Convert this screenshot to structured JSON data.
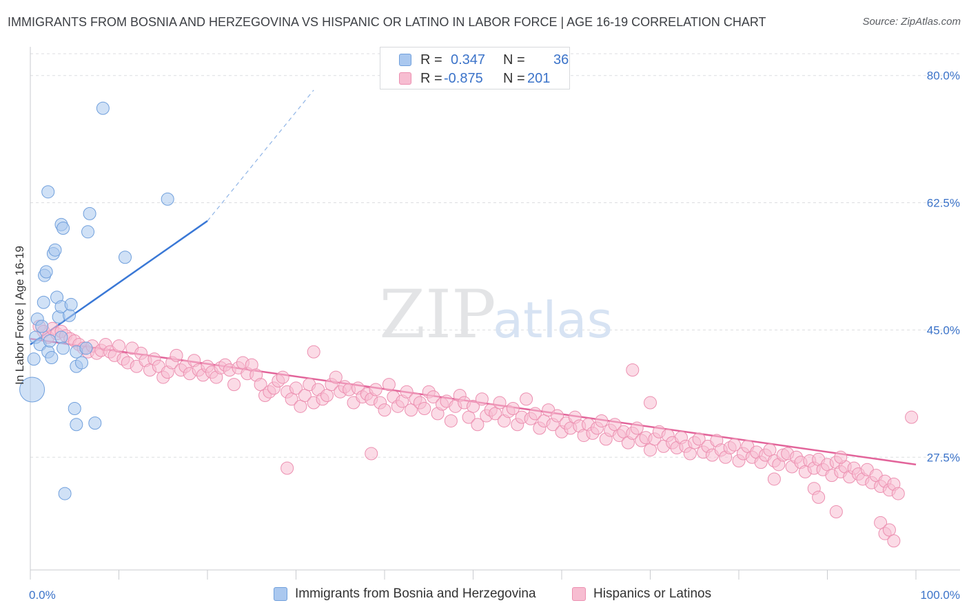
{
  "title": "IMMIGRANTS FROM BOSNIA AND HERZEGOVINA VS HISPANIC OR LATINO IN LABOR FORCE | AGE 16-19 CORRELATION CHART",
  "source": "Source: ZipAtlas.com",
  "watermark": {
    "zip": "ZIP",
    "atlas": "atlas"
  },
  "legend": {
    "rows": [
      {
        "r_label": "R =",
        "r_value": "0.347",
        "n_label": "N =",
        "n_value": "36",
        "color": "#aac8ef",
        "stroke": "#6f9fdc"
      },
      {
        "r_label": "R =",
        "r_value": "-0.875",
        "n_label": "N =",
        "n_value": "201",
        "color": "#f7bdd1",
        "stroke": "#ec8fb0"
      }
    ]
  },
  "bottom_legend": [
    {
      "label": "Immigrants from Bosnia and Herzegovina",
      "color": "#aac8ef",
      "stroke": "#6f9fdc"
    },
    {
      "label": "Hispanics or Latinos",
      "color": "#f7bdd1",
      "stroke": "#ec8fb0"
    }
  ],
  "chart_data": {
    "type": "scatter",
    "title": "IMMIGRANTS FROM BOSNIA AND HERZEGOVINA VS HISPANIC OR LATINO IN LABOR FORCE | AGE 16-19 CORRELATION CHART",
    "xlabel": "",
    "ylabel": "In Labor Force | Age 16-19",
    "xlim": [
      0,
      100
    ],
    "ylim": [
      12,
      83
    ],
    "x_tick_labels": [
      {
        "value": 0,
        "label": "0.0%"
      },
      {
        "value": 100,
        "label": "100.0%"
      }
    ],
    "y_tick_labels": [
      {
        "value": 80,
        "label": "80.0%"
      },
      {
        "value": 62.5,
        "label": "62.5%"
      },
      {
        "value": 45,
        "label": "45.0%"
      },
      {
        "value": 27.5,
        "label": "27.5%"
      }
    ],
    "grid": true,
    "legend_position": "top-center",
    "series": [
      {
        "name": "Immigrants from Bosnia and Herzegovina",
        "color": "#aac8ef",
        "stroke": "#6f9fdc",
        "trend": {
          "x": [
            0,
            20
          ],
          "y": [
            43.0,
            60.0
          ],
          "dashed_to": [
            32,
            78
          ]
        },
        "points": [
          {
            "x": 0.2,
            "y": 36.8,
            "big": true
          },
          {
            "x": 0.4,
            "y": 41.0
          },
          {
            "x": 0.6,
            "y": 44.0
          },
          {
            "x": 0.8,
            "y": 46.5
          },
          {
            "x": 1.1,
            "y": 43.0
          },
          {
            "x": 1.3,
            "y": 45.5
          },
          {
            "x": 1.5,
            "y": 48.8
          },
          {
            "x": 1.6,
            "y": 52.5
          },
          {
            "x": 1.8,
            "y": 53.0
          },
          {
            "x": 2.0,
            "y": 42.0
          },
          {
            "x": 2.2,
            "y": 43.5
          },
          {
            "x": 2.4,
            "y": 41.2
          },
          {
            "x": 2.6,
            "y": 55.5
          },
          {
            "x": 2.8,
            "y": 56.0
          },
          {
            "x": 3.0,
            "y": 49.5
          },
          {
            "x": 3.2,
            "y": 46.8
          },
          {
            "x": 3.5,
            "y": 48.2
          },
          {
            "x": 3.5,
            "y": 44.0
          },
          {
            "x": 3.7,
            "y": 42.5
          },
          {
            "x": 2.0,
            "y": 64.0
          },
          {
            "x": 3.5,
            "y": 59.5
          },
          {
            "x": 3.7,
            "y": 59.0
          },
          {
            "x": 4.4,
            "y": 47.0
          },
          {
            "x": 4.6,
            "y": 48.5
          },
          {
            "x": 5.2,
            "y": 42.0
          },
          {
            "x": 5.2,
            "y": 40.0
          },
          {
            "x": 5.0,
            "y": 34.2
          },
          {
            "x": 5.2,
            "y": 32.0
          },
          {
            "x": 5.8,
            "y": 40.5
          },
          {
            "x": 6.3,
            "y": 42.5
          },
          {
            "x": 6.5,
            "y": 58.5
          },
          {
            "x": 6.7,
            "y": 61.0
          },
          {
            "x": 7.3,
            "y": 32.2
          },
          {
            "x": 8.2,
            "y": 75.5
          },
          {
            "x": 10.7,
            "y": 55.0
          },
          {
            "x": 15.5,
            "y": 63.0
          },
          {
            "x": 3.9,
            "y": 22.5
          }
        ]
      },
      {
        "name": "Hispanics or Latinos",
        "color": "#f7bdd1",
        "stroke": "#ec8fb0",
        "trend": {
          "x": [
            0,
            100
          ],
          "y": [
            43.8,
            26.5
          ]
        },
        "points": [
          {
            "x": 1.0,
            "y": 45.5
          },
          {
            "x": 1.5,
            "y": 44.8
          },
          {
            "x": 2.0,
            "y": 44.0
          },
          {
            "x": 2.5,
            "y": 45.2
          },
          {
            "x": 3.0,
            "y": 44.5
          },
          {
            "x": 3.5,
            "y": 44.8
          },
          {
            "x": 4.0,
            "y": 44.2
          },
          {
            "x": 4.5,
            "y": 43.8
          },
          {
            "x": 5.0,
            "y": 43.5
          },
          {
            "x": 5.5,
            "y": 43.0
          },
          {
            "x": 6.0,
            "y": 42.5
          },
          {
            "x": 6.5,
            "y": 42.0
          },
          {
            "x": 7.0,
            "y": 42.8
          },
          {
            "x": 7.5,
            "y": 41.8
          },
          {
            "x": 8.0,
            "y": 42.2
          },
          {
            "x": 8.5,
            "y": 43.0
          },
          {
            "x": 9.0,
            "y": 42.0
          },
          {
            "x": 9.5,
            "y": 41.5
          },
          {
            "x": 10.0,
            "y": 42.8
          },
          {
            "x": 10.5,
            "y": 41.0
          },
          {
            "x": 11.0,
            "y": 40.5
          },
          {
            "x": 11.5,
            "y": 42.5
          },
          {
            "x": 12.0,
            "y": 40.0
          },
          {
            "x": 12.5,
            "y": 41.8
          },
          {
            "x": 13.0,
            "y": 40.8
          },
          {
            "x": 13.5,
            "y": 39.5
          },
          {
            "x": 14.0,
            "y": 41.0
          },
          {
            "x": 14.5,
            "y": 40.0
          },
          {
            "x": 15.0,
            "y": 38.5
          },
          {
            "x": 15.5,
            "y": 39.2
          },
          {
            "x": 16.0,
            "y": 40.5
          },
          {
            "x": 16.5,
            "y": 41.5
          },
          {
            "x": 17.0,
            "y": 39.5
          },
          {
            "x": 17.5,
            "y": 40.0
          },
          {
            "x": 18.0,
            "y": 39.0
          },
          {
            "x": 18.5,
            "y": 40.8
          },
          {
            "x": 19.0,
            "y": 39.5
          },
          {
            "x": 19.5,
            "y": 38.8
          },
          {
            "x": 20.0,
            "y": 40.0
          },
          {
            "x": 20.5,
            "y": 39.2
          },
          {
            "x": 21.0,
            "y": 38.5
          },
          {
            "x": 21.5,
            "y": 39.8
          },
          {
            "x": 22.0,
            "y": 40.2
          },
          {
            "x": 22.5,
            "y": 39.5
          },
          {
            "x": 23.0,
            "y": 37.5
          },
          {
            "x": 23.5,
            "y": 39.8
          },
          {
            "x": 24.0,
            "y": 40.5
          },
          {
            "x": 24.5,
            "y": 39.0
          },
          {
            "x": 25.0,
            "y": 40.2
          },
          {
            "x": 25.5,
            "y": 38.8
          },
          {
            "x": 26.0,
            "y": 37.5
          },
          {
            "x": 26.5,
            "y": 36.0
          },
          {
            "x": 27.0,
            "y": 36.5
          },
          {
            "x": 27.5,
            "y": 37.0
          },
          {
            "x": 28.0,
            "y": 38.0
          },
          {
            "x": 28.5,
            "y": 38.5
          },
          {
            "x": 29.0,
            "y": 36.5
          },
          {
            "x": 29.5,
            "y": 35.5
          },
          {
            "x": 30.0,
            "y": 37.0
          },
          {
            "x": 30.5,
            "y": 34.5
          },
          {
            "x": 31.0,
            "y": 36.0
          },
          {
            "x": 31.5,
            "y": 37.5
          },
          {
            "x": 32.0,
            "y": 35.0
          },
          {
            "x": 32.5,
            "y": 36.8
          },
          {
            "x": 33.0,
            "y": 35.5
          },
          {
            "x": 33.5,
            "y": 36.0
          },
          {
            "x": 34.0,
            "y": 37.5
          },
          {
            "x": 34.5,
            "y": 38.5
          },
          {
            "x": 35.0,
            "y": 36.5
          },
          {
            "x": 35.5,
            "y": 37.2
          },
          {
            "x": 36.0,
            "y": 36.8
          },
          {
            "x": 36.5,
            "y": 35.0
          },
          {
            "x": 37.0,
            "y": 37.0
          },
          {
            "x": 37.5,
            "y": 35.8
          },
          {
            "x": 38.0,
            "y": 36.2
          },
          {
            "x": 38.5,
            "y": 35.5
          },
          {
            "x": 39.0,
            "y": 36.8
          },
          {
            "x": 39.5,
            "y": 35.0
          },
          {
            "x": 40.0,
            "y": 34.0
          },
          {
            "x": 40.5,
            "y": 37.5
          },
          {
            "x": 41.0,
            "y": 35.8
          },
          {
            "x": 41.5,
            "y": 34.5
          },
          {
            "x": 42.0,
            "y": 35.2
          },
          {
            "x": 42.5,
            "y": 36.5
          },
          {
            "x": 43.0,
            "y": 34.0
          },
          {
            "x": 43.5,
            "y": 35.5
          },
          {
            "x": 44.0,
            "y": 35.0
          },
          {
            "x": 44.5,
            "y": 34.2
          },
          {
            "x": 45.0,
            "y": 36.5
          },
          {
            "x": 45.5,
            "y": 35.8
          },
          {
            "x": 46.0,
            "y": 33.5
          },
          {
            "x": 46.5,
            "y": 34.8
          },
          {
            "x": 47.0,
            "y": 35.2
          },
          {
            "x": 47.5,
            "y": 32.5
          },
          {
            "x": 48.0,
            "y": 34.5
          },
          {
            "x": 48.5,
            "y": 36.0
          },
          {
            "x": 49.0,
            "y": 35.0
          },
          {
            "x": 49.5,
            "y": 33.0
          },
          {
            "x": 50.0,
            "y": 34.5
          },
          {
            "x": 50.5,
            "y": 32.0
          },
          {
            "x": 51.0,
            "y": 35.5
          },
          {
            "x": 51.5,
            "y": 33.2
          },
          {
            "x": 52.0,
            "y": 34.0
          },
          {
            "x": 52.5,
            "y": 33.5
          },
          {
            "x": 53.0,
            "y": 35.0
          },
          {
            "x": 53.5,
            "y": 32.5
          },
          {
            "x": 54.0,
            "y": 33.8
          },
          {
            "x": 54.5,
            "y": 34.2
          },
          {
            "x": 55.0,
            "y": 32.0
          },
          {
            "x": 55.5,
            "y": 33.0
          },
          {
            "x": 56.0,
            "y": 35.5
          },
          {
            "x": 56.5,
            "y": 32.8
          },
          {
            "x": 57.0,
            "y": 33.5
          },
          {
            "x": 57.5,
            "y": 31.5
          },
          {
            "x": 58.0,
            "y": 32.5
          },
          {
            "x": 58.5,
            "y": 34.0
          },
          {
            "x": 59.0,
            "y": 32.0
          },
          {
            "x": 59.5,
            "y": 33.2
          },
          {
            "x": 60.0,
            "y": 31.0
          },
          {
            "x": 60.5,
            "y": 32.2
          },
          {
            "x": 61.0,
            "y": 31.5
          },
          {
            "x": 61.5,
            "y": 33.0
          },
          {
            "x": 62.0,
            "y": 31.8
          },
          {
            "x": 62.5,
            "y": 30.5
          },
          {
            "x": 63.0,
            "y": 32.0
          },
          {
            "x": 63.5,
            "y": 30.8
          },
          {
            "x": 64.0,
            "y": 31.5
          },
          {
            "x": 64.5,
            "y": 32.5
          },
          {
            "x": 65.0,
            "y": 30.0
          },
          {
            "x": 65.5,
            "y": 31.2
          },
          {
            "x": 66.0,
            "y": 32.0
          },
          {
            "x": 66.5,
            "y": 30.5
          },
          {
            "x": 67.0,
            "y": 31.0
          },
          {
            "x": 67.5,
            "y": 29.5
          },
          {
            "x": 68.0,
            "y": 30.8
          },
          {
            "x": 68.5,
            "y": 31.5
          },
          {
            "x": 69.0,
            "y": 29.8
          },
          {
            "x": 69.5,
            "y": 30.2
          },
          {
            "x": 70.0,
            "y": 28.5
          },
          {
            "x": 70.5,
            "y": 30.0
          },
          {
            "x": 71.0,
            "y": 31.0
          },
          {
            "x": 71.5,
            "y": 29.0
          },
          {
            "x": 72.0,
            "y": 30.5
          },
          {
            "x": 72.5,
            "y": 29.5
          },
          {
            "x": 73.0,
            "y": 28.8
          },
          {
            "x": 73.5,
            "y": 30.2
          },
          {
            "x": 74.0,
            "y": 29.0
          },
          {
            "x": 74.5,
            "y": 28.0
          },
          {
            "x": 75.0,
            "y": 29.5
          },
          {
            "x": 75.5,
            "y": 30.0
          },
          {
            "x": 76.0,
            "y": 28.2
          },
          {
            "x": 76.5,
            "y": 29.0
          },
          {
            "x": 77.0,
            "y": 27.8
          },
          {
            "x": 77.5,
            "y": 29.8
          },
          {
            "x": 78.0,
            "y": 28.5
          },
          {
            "x": 78.5,
            "y": 27.5
          },
          {
            "x": 79.0,
            "y": 28.8
          },
          {
            "x": 79.5,
            "y": 29.2
          },
          {
            "x": 80.0,
            "y": 27.0
          },
          {
            "x": 80.5,
            "y": 28.0
          },
          {
            "x": 81.0,
            "y": 29.0
          },
          {
            "x": 81.5,
            "y": 27.5
          },
          {
            "x": 82.0,
            "y": 28.2
          },
          {
            "x": 82.5,
            "y": 26.8
          },
          {
            "x": 83.0,
            "y": 27.8
          },
          {
            "x": 83.5,
            "y": 28.5
          },
          {
            "x": 84.0,
            "y": 27.0
          },
          {
            "x": 84.5,
            "y": 26.5
          },
          {
            "x": 85.0,
            "y": 27.8
          },
          {
            "x": 85.5,
            "y": 28.0
          },
          {
            "x": 86.0,
            "y": 26.2
          },
          {
            "x": 86.5,
            "y": 27.5
          },
          {
            "x": 87.0,
            "y": 26.8
          },
          {
            "x": 87.5,
            "y": 25.5
          },
          {
            "x": 88.0,
            "y": 27.0
          },
          {
            "x": 88.5,
            "y": 26.0
          },
          {
            "x": 89.0,
            "y": 27.2
          },
          {
            "x": 89.5,
            "y": 25.8
          },
          {
            "x": 90.0,
            "y": 26.5
          },
          {
            "x": 90.5,
            "y": 25.0
          },
          {
            "x": 91.0,
            "y": 26.8
          },
          {
            "x": 91.5,
            "y": 25.5
          },
          {
            "x": 92.0,
            "y": 26.2
          },
          {
            "x": 92.5,
            "y": 24.8
          },
          {
            "x": 93.0,
            "y": 26.0
          },
          {
            "x": 93.5,
            "y": 25.2
          },
          {
            "x": 94.0,
            "y": 24.5
          },
          {
            "x": 94.5,
            "y": 25.8
          },
          {
            "x": 95.0,
            "y": 24.0
          },
          {
            "x": 95.5,
            "y": 25.0
          },
          {
            "x": 96.0,
            "y": 23.5
          },
          {
            "x": 96.5,
            "y": 24.2
          },
          {
            "x": 97.0,
            "y": 23.0
          },
          {
            "x": 97.5,
            "y": 23.8
          },
          {
            "x": 98.0,
            "y": 22.5
          },
          {
            "x": 29.0,
            "y": 26.0
          },
          {
            "x": 32.0,
            "y": 42.0
          },
          {
            "x": 68.0,
            "y": 39.5
          },
          {
            "x": 70.0,
            "y": 35.0
          },
          {
            "x": 84.0,
            "y": 24.5
          },
          {
            "x": 88.5,
            "y": 23.2
          },
          {
            "x": 89.0,
            "y": 22.0
          },
          {
            "x": 91.0,
            "y": 20.0
          },
          {
            "x": 96.0,
            "y": 18.5
          },
          {
            "x": 96.5,
            "y": 17.0
          },
          {
            "x": 97.0,
            "y": 17.5
          },
          {
            "x": 97.5,
            "y": 16.0
          },
          {
            "x": 99.5,
            "y": 33.0
          },
          {
            "x": 91.5,
            "y": 27.5
          },
          {
            "x": 38.5,
            "y": 28.0
          }
        ]
      }
    ]
  }
}
